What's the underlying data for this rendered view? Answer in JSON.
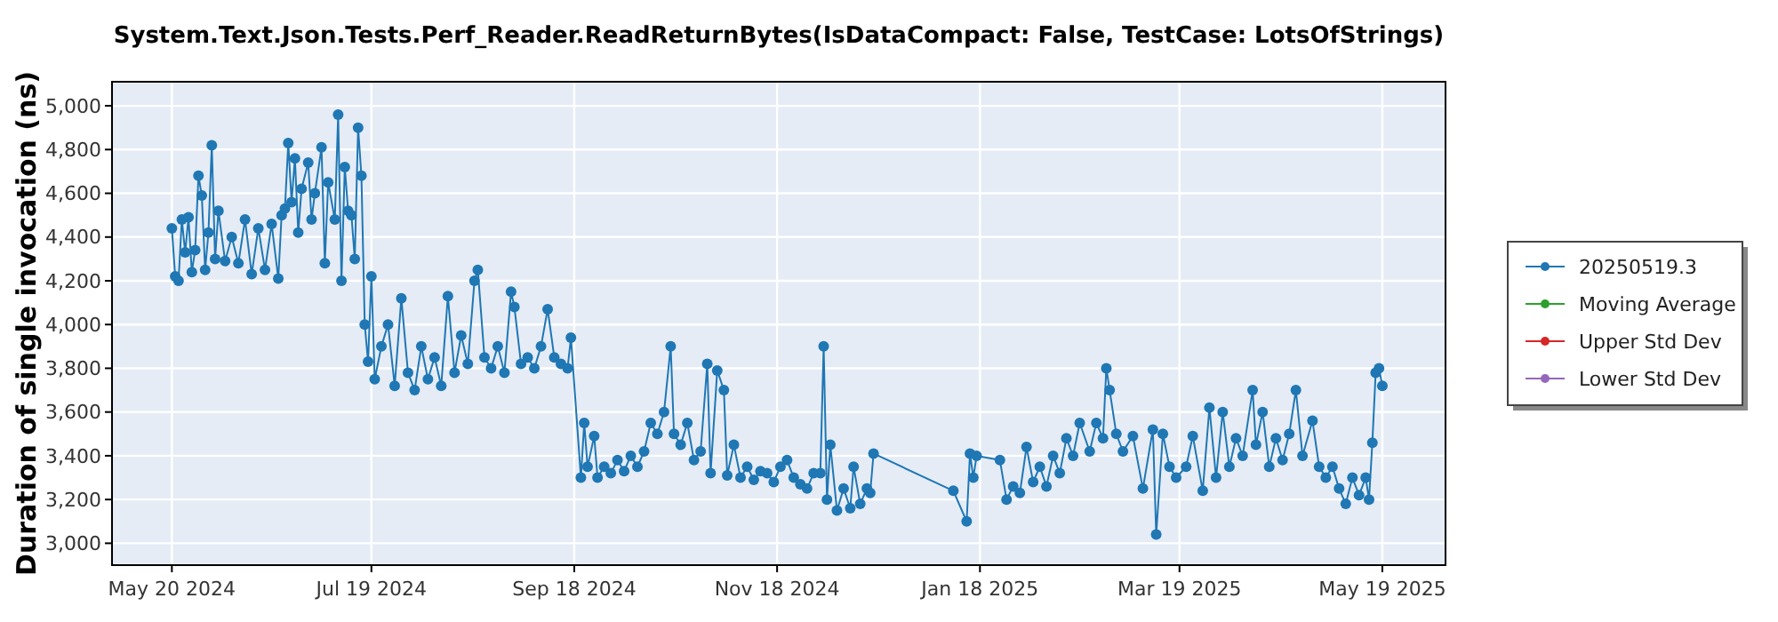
{
  "chart_data": {
    "type": "line",
    "title": "System.Text.Json.Tests.Perf_Reader.ReadReturnBytes(IsDataCompact: False, TestCase: LotsOfStrings)",
    "ylabel": "Duration of single invocation (ns)",
    "xlim": [
      "2024-05-02",
      "2025-06-07"
    ],
    "xticks": [
      {
        "value": "2024-05-20",
        "label": "May 20 2024"
      },
      {
        "value": "2024-07-19",
        "label": "Jul 19 2024"
      },
      {
        "value": "2024-09-18",
        "label": "Sep 18 2024"
      },
      {
        "value": "2024-11-18",
        "label": "Nov 18 2024"
      },
      {
        "value": "2025-01-18",
        "label": "Jan 18 2025"
      },
      {
        "value": "2025-03-19",
        "label": "Mar 19 2025"
      },
      {
        "value": "2025-05-19",
        "label": "May 19 2025"
      }
    ],
    "ylim": [
      2900,
      5110
    ],
    "yticks": [
      {
        "value": 3000,
        "label": "3,000"
      },
      {
        "value": 3200,
        "label": "3,200"
      },
      {
        "value": 3400,
        "label": "3,400"
      },
      {
        "value": 3600,
        "label": "3,600"
      },
      {
        "value": 3800,
        "label": "3,800"
      },
      {
        "value": 4000,
        "label": "4,000"
      },
      {
        "value": 4200,
        "label": "4,200"
      },
      {
        "value": 4400,
        "label": "4,400"
      },
      {
        "value": 4600,
        "label": "4,600"
      },
      {
        "value": 4800,
        "label": "4,800"
      },
      {
        "value": 5000,
        "label": "5,000"
      }
    ],
    "grid": true,
    "legend": "right",
    "marker": "circle",
    "line_style": "solid",
    "series": [
      {
        "name": "20250519.3",
        "color": "#1f77b4",
        "x": [
          "2024-05-20",
          "2024-05-21",
          "2024-05-22",
          "2024-05-23",
          "2024-05-24",
          "2024-05-25",
          "2024-05-26",
          "2024-05-27",
          "2024-05-28",
          "2024-05-29",
          "2024-05-30",
          "2024-05-31",
          "2024-06-01",
          "2024-06-02",
          "2024-06-03",
          "2024-06-05",
          "2024-06-07",
          "2024-06-09",
          "2024-06-11",
          "2024-06-13",
          "2024-06-15",
          "2024-06-17",
          "2024-06-19",
          "2024-06-21",
          "2024-06-22",
          "2024-06-23",
          "2024-06-24",
          "2024-06-25",
          "2024-06-26",
          "2024-06-27",
          "2024-06-28",
          "2024-06-30",
          "2024-07-01",
          "2024-07-02",
          "2024-07-04",
          "2024-07-05",
          "2024-07-06",
          "2024-07-08",
          "2024-07-09",
          "2024-07-10",
          "2024-07-11",
          "2024-07-12",
          "2024-07-13",
          "2024-07-14",
          "2024-07-15",
          "2024-07-16",
          "2024-07-17",
          "2024-07-18",
          "2024-07-19",
          "2024-07-20",
          "2024-07-22",
          "2024-07-24",
          "2024-07-26",
          "2024-07-28",
          "2024-07-30",
          "2024-08-01",
          "2024-08-03",
          "2024-08-05",
          "2024-08-07",
          "2024-08-09",
          "2024-08-11",
          "2024-08-13",
          "2024-08-15",
          "2024-08-17",
          "2024-08-19",
          "2024-08-20",
          "2024-08-22",
          "2024-08-24",
          "2024-08-26",
          "2024-08-28",
          "2024-08-30",
          "2024-08-31",
          "2024-09-02",
          "2024-09-04",
          "2024-09-06",
          "2024-09-08",
          "2024-09-10",
          "2024-09-12",
          "2024-09-14",
          "2024-09-16",
          "2024-09-17",
          "2024-09-20",
          "2024-09-21",
          "2024-09-22",
          "2024-09-24",
          "2024-09-25",
          "2024-09-27",
          "2024-09-29",
          "2024-10-01",
          "2024-10-03",
          "2024-10-05",
          "2024-10-07",
          "2024-10-09",
          "2024-10-11",
          "2024-10-13",
          "2024-10-15",
          "2024-10-17",
          "2024-10-18",
          "2024-10-20",
          "2024-10-22",
          "2024-10-24",
          "2024-10-26",
          "2024-10-28",
          "2024-10-29",
          "2024-10-31",
          "2024-11-02",
          "2024-11-03",
          "2024-11-05",
          "2024-11-07",
          "2024-11-09",
          "2024-11-11",
          "2024-11-13",
          "2024-11-15",
          "2024-11-17",
          "2024-11-19",
          "2024-11-21",
          "2024-11-23",
          "2024-11-25",
          "2024-11-27",
          "2024-11-29",
          "2024-12-01",
          "2024-12-02",
          "2024-12-03",
          "2024-12-04",
          "2024-12-06",
          "2024-12-08",
          "2024-12-10",
          "2024-12-11",
          "2024-12-13",
          "2024-12-15",
          "2024-12-16",
          "2024-12-17",
          "2025-01-10",
          "2025-01-14",
          "2025-01-15",
          "2025-01-16",
          "2025-01-17",
          "2025-01-24",
          "2025-01-26",
          "2025-01-28",
          "2025-01-30",
          "2025-02-01",
          "2025-02-03",
          "2025-02-05",
          "2025-02-07",
          "2025-02-09",
          "2025-02-11",
          "2025-02-13",
          "2025-02-15",
          "2025-02-17",
          "2025-02-20",
          "2025-02-22",
          "2025-02-24",
          "2025-02-25",
          "2025-02-26",
          "2025-02-28",
          "2025-03-02",
          "2025-03-05",
          "2025-03-08",
          "2025-03-11",
          "2025-03-12",
          "2025-03-14",
          "2025-03-16",
          "2025-03-18",
          "2025-03-21",
          "2025-03-23",
          "2025-03-26",
          "2025-03-28",
          "2025-03-30",
          "2025-04-01",
          "2025-04-03",
          "2025-04-05",
          "2025-04-07",
          "2025-04-10",
          "2025-04-11",
          "2025-04-13",
          "2025-04-15",
          "2025-04-17",
          "2025-04-19",
          "2025-04-21",
          "2025-04-23",
          "2025-04-25",
          "2025-04-28",
          "2025-04-30",
          "2025-05-02",
          "2025-05-04",
          "2025-05-06",
          "2025-05-08",
          "2025-05-10",
          "2025-05-12",
          "2025-05-14",
          "2025-05-15",
          "2025-05-16",
          "2025-05-17",
          "2025-05-18",
          "2025-05-19"
        ],
        "values": [
          4440,
          4220,
          4200,
          4480,
          4330,
          4490,
          4240,
          4340,
          4680,
          4590,
          4250,
          4420,
          4820,
          4300,
          4520,
          4290,
          4400,
          4280,
          4480,
          4230,
          4440,
          4250,
          4460,
          4210,
          4500,
          4530,
          4830,
          4560,
          4760,
          4420,
          4620,
          4740,
          4480,
          4600,
          4810,
          4280,
          4650,
          4480,
          4960,
          4200,
          4720,
          4520,
          4500,
          4300,
          4900,
          4680,
          4000,
          3830,
          4220,
          3750,
          3900,
          4000,
          3720,
          4120,
          3780,
          3700,
          3900,
          3750,
          3850,
          3720,
          4130,
          3780,
          3950,
          3820,
          4200,
          4250,
          3850,
          3800,
          3900,
          3780,
          4150,
          4080,
          3820,
          3850,
          3800,
          3900,
          4070,
          3850,
          3820,
          3800,
          3940,
          3300,
          3550,
          3350,
          3490,
          3300,
          3350,
          3320,
          3380,
          3330,
          3400,
          3350,
          3420,
          3550,
          3500,
          3600,
          3900,
          3500,
          3450,
          3550,
          3380,
          3420,
          3820,
          3320,
          3790,
          3700,
          3310,
          3450,
          3300,
          3350,
          3290,
          3330,
          3320,
          3280,
          3350,
          3380,
          3300,
          3270,
          3250,
          3320,
          3320,
          3900,
          3200,
          3450,
          3150,
          3250,
          3160,
          3350,
          3180,
          3250,
          3230,
          3410,
          3240,
          3100,
          3410,
          3300,
          3400,
          3380,
          3200,
          3260,
          3230,
          3440,
          3280,
          3350,
          3260,
          3400,
          3320,
          3480,
          3400,
          3550,
          3420,
          3550,
          3480,
          3800,
          3700,
          3500,
          3420,
          3490,
          3250,
          3520,
          3040,
          3500,
          3350,
          3300,
          3350,
          3490,
          3240,
          3620,
          3300,
          3600,
          3350,
          3480,
          3400,
          3700,
          3450,
          3600,
          3350,
          3480,
          3380,
          3500,
          3700,
          3400,
          3560,
          3350,
          3300,
          3350,
          3250,
          3180,
          3300,
          3220,
          3300,
          3200,
          3460,
          3780,
          3800,
          3720
        ]
      },
      {
        "name": "Moving Average",
        "color": "#2ca02c"
      },
      {
        "name": "Upper Std Dev",
        "color": "#d62728"
      },
      {
        "name": "Lower Std Dev",
        "color": "#9467bd"
      }
    ]
  }
}
